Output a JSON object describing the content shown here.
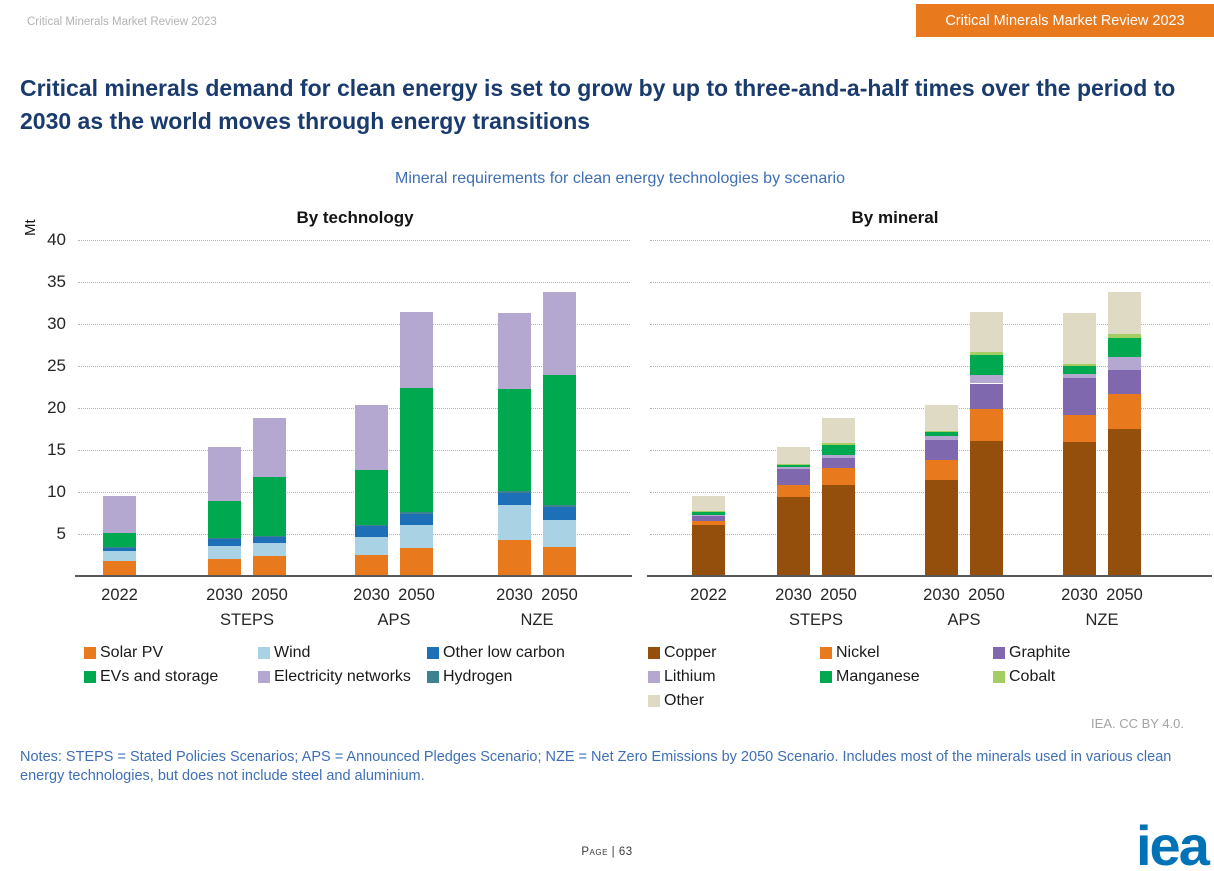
{
  "page": {
    "doc_label": "Critical Minerals Market Review 2023",
    "badge": "Critical Minerals Market Review 2023",
    "title": "Critical minerals demand for clean energy is set to grow by up to three-and-a-half times over the period to 2030 as the world moves through energy transitions",
    "subtitle": "Mineral requirements for clean energy technologies by scenario"
  },
  "axis": {
    "unit": "Mt",
    "ticks": [
      40,
      35,
      30,
      25,
      20,
      15,
      10,
      5
    ],
    "max": 40
  },
  "palette": {
    "Solar PV": "#E8791D",
    "Wind": "#A9D2E4",
    "Other low carbon": "#1D70B7",
    "Hydrogen": "#3F828F",
    "EVs and storage": "#00A950",
    "Electricity networks": "#B4A7D0",
    "Copper": "#954F0D",
    "Nickel": "#E8791D",
    "Graphite": "#7F68AE",
    "Lithium": "#B4A7D0",
    "Manganese": "#00A950",
    "Cobalt": "#A4CD64",
    "Other": "#DEDAC4"
  },
  "chart_data": [
    {
      "type": "bar",
      "stacked": true,
      "title": "By technology",
      "ylabel": "Mt",
      "ylim": [
        0,
        40
      ],
      "grid": true,
      "legend_position": "bottom",
      "categories": [
        "2022",
        "2030 STEPS",
        "2050 STEPS",
        "2030 APS",
        "2050 APS",
        "2030 NZE",
        "2050 NZE"
      ],
      "groups": [
        {
          "years": [
            "2022"
          ],
          "scenario": ""
        },
        {
          "years": [
            "2030",
            "2050"
          ],
          "scenario": "STEPS"
        },
        {
          "years": [
            "2030",
            "2050"
          ],
          "scenario": "APS"
        },
        {
          "years": [
            "2030",
            "2050"
          ],
          "scenario": "NZE"
        }
      ],
      "series": [
        {
          "name": "Solar PV",
          "values": [
            1.7,
            1.9,
            2.3,
            2.4,
            3.2,
            4.2,
            3.3
          ]
        },
        {
          "name": "Wind",
          "values": [
            1.2,
            1.6,
            1.5,
            2.1,
            2.8,
            4.1,
            3.3
          ]
        },
        {
          "name": "Other low carbon",
          "values": [
            0.4,
            0.8,
            0.8,
            1.4,
            1.3,
            1.5,
            1.5
          ]
        },
        {
          "name": "Hydrogen",
          "values": [
            0.05,
            0.05,
            0.1,
            0.1,
            0.2,
            0.2,
            0.2
          ]
        },
        {
          "name": "EVs and storage",
          "values": [
            1.6,
            4.5,
            7.0,
            6.5,
            14.8,
            12.1,
            15.5
          ]
        },
        {
          "name": "Electricity networks",
          "values": [
            4.4,
            6.4,
            7.0,
            7.7,
            9.0,
            9.1,
            9.9
          ]
        }
      ],
      "legend_columns": [
        [
          "Solar PV",
          "EVs and storage"
        ],
        [
          "Wind",
          "Electricity networks"
        ],
        [
          "Other low carbon",
          "Hydrogen"
        ]
      ]
    },
    {
      "type": "bar",
      "stacked": true,
      "title": "By mineral",
      "ylabel": "Mt",
      "ylim": [
        0,
        40
      ],
      "grid": true,
      "legend_position": "bottom",
      "categories": [
        "2022",
        "2030 STEPS",
        "2050 STEPS",
        "2030 APS",
        "2050 APS",
        "2030 NZE",
        "2050 NZE"
      ],
      "groups": [
        {
          "years": [
            "2022"
          ],
          "scenario": ""
        },
        {
          "years": [
            "2030",
            "2050"
          ],
          "scenario": "STEPS"
        },
        {
          "years": [
            "2030",
            "2050"
          ],
          "scenario": "APS"
        },
        {
          "years": [
            "2030",
            "2050"
          ],
          "scenario": "NZE"
        }
      ],
      "series": [
        {
          "name": "Copper",
          "values": [
            5.9,
            9.3,
            10.7,
            11.3,
            16.0,
            15.8,
            17.4
          ]
        },
        {
          "name": "Nickel",
          "values": [
            0.5,
            1.4,
            2.0,
            2.4,
            3.8,
            3.2,
            4.2
          ]
        },
        {
          "name": "Graphite",
          "values": [
            0.6,
            1.9,
            1.2,
            2.4,
            3.0,
            4.4,
            2.8
          ]
        },
        {
          "name": "Lithium",
          "values": [
            0.2,
            0.3,
            0.4,
            0.4,
            1.0,
            0.5,
            1.6
          ]
        },
        {
          "name": "Manganese",
          "values": [
            0.4,
            0.3,
            1.2,
            0.6,
            2.4,
            1.0,
            2.2
          ]
        },
        {
          "name": "Cobalt",
          "values": [
            0.05,
            0.05,
            0.2,
            0.1,
            0.3,
            0.2,
            0.45
          ]
        },
        {
          "name": "Other",
          "values": [
            1.7,
            2.0,
            3.0,
            3.0,
            4.8,
            6.1,
            5.05
          ]
        }
      ],
      "legend_columns": [
        [
          "Copper",
          "Lithium",
          "Other"
        ],
        [
          "Nickel",
          "Manganese"
        ],
        [
          "Graphite",
          "Cobalt"
        ]
      ]
    }
  ],
  "footer": {
    "license": "IEA. CC BY 4.0.",
    "notes": "Notes: STEPS = Stated Policies Scenarios; APS = Announced Pledges Scenario; NZE = Net Zero Emissions by 2050 Scenario. Includes most of the minerals used in various clean energy technologies, but does not include steel and aluminium.",
    "page_number": "Page | 63",
    "logo": "iea"
  }
}
